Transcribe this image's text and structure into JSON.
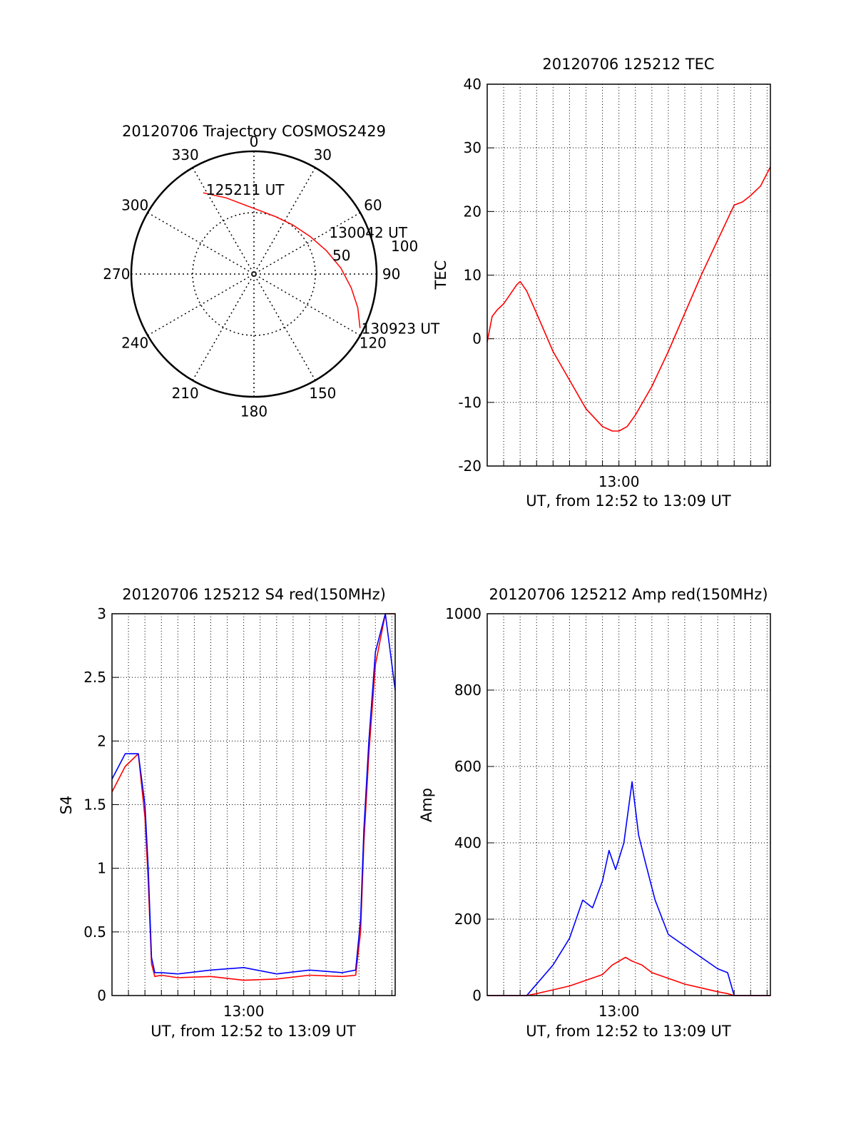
{
  "chart_data": [
    {
      "type": "polar",
      "title": "20120706 Trajectory COSMOS2429",
      "azimuth_labels": [
        "0",
        "30",
        "60",
        "90",
        "120",
        "150",
        "180",
        "210",
        "240",
        "270",
        "300",
        "330"
      ],
      "radial_labels": [
        "50",
        "100"
      ],
      "color": "#ff0000",
      "track": [
        {
          "az": 328,
          "zen": 78
        },
        {
          "az": 340,
          "zen": 66
        },
        {
          "az": 352,
          "zen": 57
        },
        {
          "az": 5,
          "zen": 52
        },
        {
          "az": 20,
          "zen": 50
        },
        {
          "az": 38,
          "zen": 51
        },
        {
          "az": 56,
          "zen": 55
        },
        {
          "az": 72,
          "zen": 62
        },
        {
          "az": 86,
          "zen": 71
        },
        {
          "az": 98,
          "zen": 80
        },
        {
          "az": 108,
          "zen": 89
        },
        {
          "az": 117,
          "zen": 97
        }
      ],
      "annotations": [
        {
          "text": "125211 UT",
          "az": 328,
          "zen": 78
        },
        {
          "text": "130042 UT",
          "az": 72,
          "zen": 62
        },
        {
          "text": "130923 UT",
          "az": 117,
          "zen": 97
        }
      ]
    },
    {
      "type": "line",
      "title": "20120706 125212 TEC",
      "xlabel": "UT, from 12:52 to 13:09 UT",
      "ylabel": "TEC",
      "xlim": [
        0,
        17.2
      ],
      "ylim": [
        -20,
        40
      ],
      "yticks": [
        "-20",
        "-10",
        "0",
        "10",
        "20",
        "30",
        "40"
      ],
      "xtick_label": "13:00",
      "color": "#ff0000",
      "x": [
        0,
        0.3,
        0.6,
        1.0,
        1.4,
        1.8,
        2.0,
        2.4,
        3.0,
        4.0,
        5.0,
        6.0,
        7.0,
        7.6,
        8.0,
        8.5,
        9.0,
        10.0,
        11.0,
        12.0,
        13.0,
        14.0,
        15.0,
        15.5,
        16.0,
        16.6,
        17.2
      ],
      "values": [
        -0.5,
        3.5,
        4.5,
        5.5,
        7.0,
        8.5,
        9.0,
        7.5,
        4.0,
        -2.0,
        -6.5,
        -11.0,
        -13.8,
        -14.5,
        -14.5,
        -13.8,
        -12.0,
        -7.5,
        -2.0,
        4.0,
        10.0,
        15.5,
        21.0,
        21.5,
        22.5,
        24.0,
        27.0
      ]
    },
    {
      "type": "line",
      "title": "20120706 125212 S4 red(150MHz)",
      "xlabel": "UT, from 12:52 to 13:09 UT",
      "ylabel": "S4",
      "xlim": [
        0,
        17.2
      ],
      "ylim": [
        0,
        3
      ],
      "yticks": [
        "0",
        "0.5",
        "1",
        "1.5",
        "2",
        "2.5",
        "3"
      ],
      "xtick_label": "13:00",
      "series": [
        {
          "color": "#ff0000",
          "x": [
            0,
            0.8,
            1.6,
            2.0,
            2.2,
            2.4,
            2.6,
            3.0,
            4.0,
            6.0,
            8.0,
            10.0,
            12.0,
            14.0,
            14.8,
            15.1,
            15.3,
            15.6,
            16.0,
            16.6,
            17.2
          ],
          "values": [
            1.6,
            1.8,
            1.9,
            1.4,
            0.9,
            0.25,
            0.15,
            0.16,
            0.14,
            0.15,
            0.12,
            0.13,
            0.16,
            0.15,
            0.16,
            0.5,
            1.2,
            1.9,
            2.6,
            3.0,
            3.0
          ]
        },
        {
          "color": "#0000ff",
          "x": [
            0,
            0.8,
            1.6,
            2.0,
            2.2,
            2.4,
            2.6,
            3.0,
            4.0,
            6.0,
            8.0,
            10.0,
            12.0,
            14.0,
            14.8,
            15.1,
            15.3,
            15.6,
            16.0,
            16.6,
            17.2
          ],
          "values": [
            1.7,
            1.9,
            1.9,
            1.5,
            1.0,
            0.3,
            0.18,
            0.18,
            0.17,
            0.2,
            0.22,
            0.17,
            0.2,
            0.18,
            0.2,
            0.6,
            1.3,
            2.0,
            2.7,
            3.0,
            2.4
          ]
        }
      ]
    },
    {
      "type": "line",
      "title": "20120706 125212 Amp red(150MHz)",
      "xlabel": "UT, from 12:52 to 13:09 UT",
      "ylabel": "Amp",
      "xlim": [
        0,
        17.2
      ],
      "ylim": [
        0,
        1000
      ],
      "yticks": [
        "0",
        "200",
        "400",
        "600",
        "800",
        "1000"
      ],
      "xtick_label": "13:00",
      "series": [
        {
          "color": "#0000ff",
          "x": [
            0,
            2.4,
            2.8,
            3.2,
            4.0,
            5.0,
            5.8,
            6.4,
            7.0,
            7.4,
            7.8,
            8.3,
            8.8,
            9.2,
            9.6,
            10.2,
            11.0,
            12.0,
            13.0,
            14.0,
            14.6,
            15.0,
            17.2
          ],
          "values": [
            0,
            0,
            20,
            40,
            80,
            150,
            250,
            230,
            300,
            380,
            330,
            400,
            560,
            420,
            350,
            250,
            160,
            130,
            100,
            70,
            60,
            0,
            0
          ]
        },
        {
          "color": "#ff0000",
          "x": [
            0,
            2.4,
            3.0,
            4.0,
            5.0,
            6.0,
            7.0,
            7.6,
            8.0,
            8.4,
            8.8,
            9.4,
            10.0,
            11.0,
            12.0,
            13.0,
            14.0,
            14.6,
            15.0,
            17.2
          ],
          "values": [
            0,
            0,
            5,
            15,
            25,
            40,
            55,
            80,
            90,
            100,
            90,
            80,
            60,
            45,
            30,
            20,
            10,
            5,
            0,
            0
          ]
        }
      ]
    }
  ]
}
